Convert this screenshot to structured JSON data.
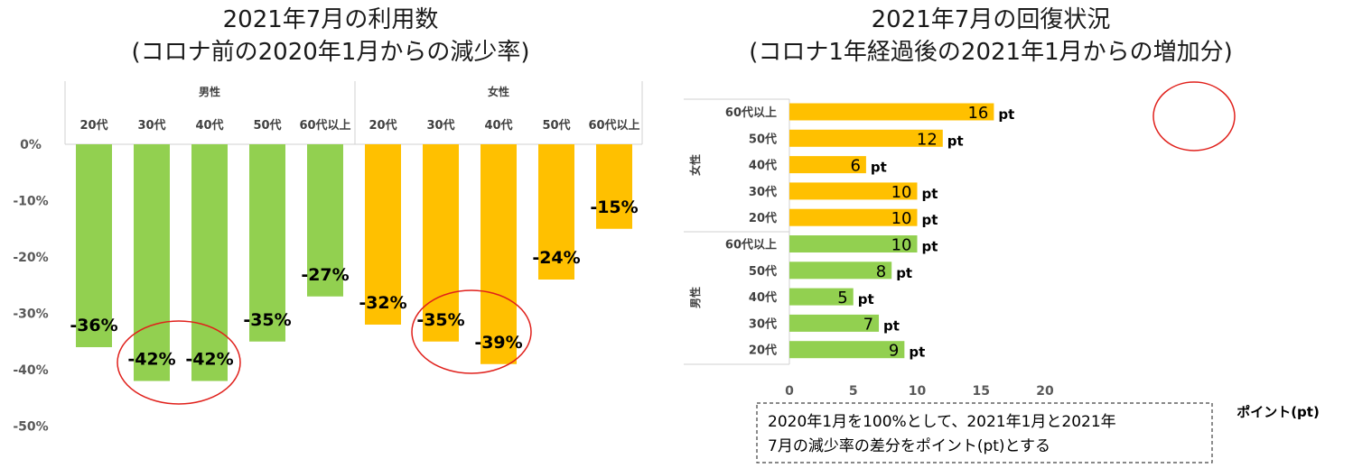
{
  "colors": {
    "male": "#92d050",
    "female": "#ffc000",
    "circle": "#e0201b"
  },
  "chart_data": [
    {
      "type": "bar",
      "title": "2021年7月の利用数",
      "subtitle": "(コロナ前の2020年1月からの減少率)",
      "groups": [
        "男性",
        "女性"
      ],
      "categories": [
        "20代",
        "30代",
        "40代",
        "50代",
        "60代以上"
      ],
      "series": [
        {
          "name": "男性",
          "values": [
            -36,
            -42,
            -42,
            -35,
            -27
          ]
        },
        {
          "name": "女性",
          "values": [
            -32,
            -35,
            -39,
            -24,
            -15
          ]
        }
      ],
      "data_labels": {
        "男性": [
          "-36%",
          "-42%",
          "-42%",
          "-35%",
          "-27%"
        ],
        "女性": [
          "-32%",
          "-35%",
          "-39%",
          "-24%",
          "-15%"
        ]
      },
      "y_ticks": [
        "0%",
        "-10%",
        "-20%",
        "-30%",
        "-40%",
        "-50%"
      ],
      "ylim": [
        -50,
        0
      ],
      "grid": false,
      "highlight": "男性 30代・40代, 女性 30代・40代"
    },
    {
      "type": "bar",
      "orientation": "horizontal",
      "title": "2021年7月の回復状況",
      "subtitle": "(コロナ1年経過後の2021年1月からの増加分)",
      "groups": [
        "女性",
        "男性"
      ],
      "categories": [
        "60代以上",
        "50代",
        "40代",
        "30代",
        "20代"
      ],
      "series": [
        {
          "name": "女性",
          "values": [
            16,
            12,
            6,
            10,
            10
          ]
        },
        {
          "name": "男性",
          "values": [
            10,
            8,
            5,
            7,
            9
          ]
        }
      ],
      "value_unit": "pt",
      "xlabel": "ポイント(pt)",
      "x_ticks": [
        "0",
        "5",
        "10",
        "15",
        "20"
      ],
      "xlim": [
        0,
        20
      ],
      "grid": false,
      "highlight": "女性 60代以上",
      "note": [
        "2020年1月を100%として、2021年1月と2021年",
        "7月の減少率の差分をポイント(pt)とする"
      ]
    }
  ]
}
